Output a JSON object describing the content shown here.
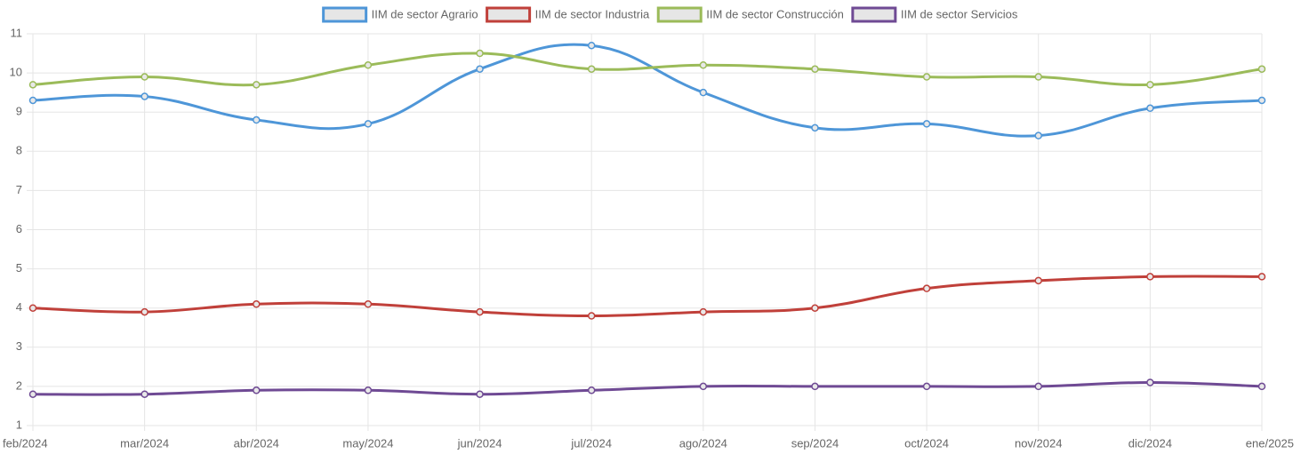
{
  "chart_data": {
    "type": "line",
    "categories": [
      "feb/2024",
      "mar/2024",
      "abr/2024",
      "may/2024",
      "jun/2024",
      "jul/2024",
      "ago/2024",
      "sep/2024",
      "oct/2024",
      "nov/2024",
      "dic/2024",
      "ene/2025"
    ],
    "series": [
      {
        "name": "IIM de sector Agrario",
        "color": "#4e96d8",
        "values": [
          9.3,
          9.4,
          8.8,
          8.7,
          10.1,
          10.7,
          9.5,
          8.6,
          8.7,
          8.4,
          9.1,
          9.3
        ]
      },
      {
        "name": "IIM de sector Industria",
        "color": "#c0403a",
        "values": [
          4.0,
          3.9,
          4.1,
          4.1,
          3.9,
          3.8,
          3.9,
          4.0,
          4.5,
          4.7,
          4.8,
          4.8
        ]
      },
      {
        "name": "IIM de sector Construcción",
        "color": "#9bbb59",
        "values": [
          9.7,
          9.9,
          9.7,
          10.2,
          10.5,
          10.1,
          10.2,
          10.1,
          9.9,
          9.9,
          9.7,
          10.1
        ]
      },
      {
        "name": "IIM de sector Servicios",
        "color": "#6f4a94",
        "values": [
          1.8,
          1.8,
          1.9,
          1.9,
          1.8,
          1.9,
          2.0,
          2.0,
          2.0,
          2.0,
          2.1,
          2.0
        ]
      }
    ],
    "ylim": [
      1,
      11
    ],
    "yticks": [
      1,
      2,
      3,
      4,
      5,
      6,
      7,
      8,
      9,
      10,
      11
    ],
    "grid": true,
    "legend": "top"
  }
}
